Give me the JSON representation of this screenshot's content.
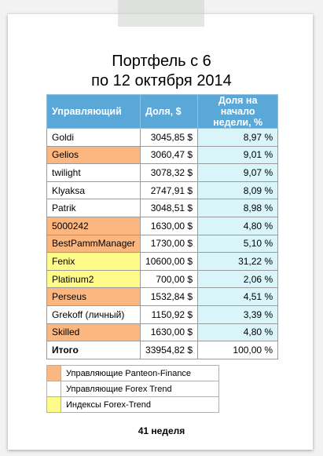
{
  "title_line1": "Портфель с 6",
  "title_line2": "по 12 октября 2014",
  "headers": {
    "manager": "Управляющий",
    "share": "Доля, $",
    "share_pct": "Доля на начало недели, %"
  },
  "rows": [
    {
      "name": "Goldi",
      "share": "3045,85 $",
      "pct": "8,97 %",
      "group": "trend"
    },
    {
      "name": "Gelios",
      "share": "3060,47 $",
      "pct": "9,01 %",
      "group": "panteon"
    },
    {
      "name": "twilight",
      "share": "3078,32 $",
      "pct": "9,07 %",
      "group": "trend"
    },
    {
      "name": "Klyaksa",
      "share": "2747,91 $",
      "pct": "8,09 %",
      "group": "trend"
    },
    {
      "name": "Patrik",
      "share": "3048,51 $",
      "pct": "8,98 %",
      "group": "trend"
    },
    {
      "name": "5000242",
      "share": "1630,00 $",
      "pct": "4,80 %",
      "group": "panteon"
    },
    {
      "name": "BestPammManager",
      "share": "1730,00 $",
      "pct": "5,10 %",
      "group": "panteon"
    },
    {
      "name": "Fenix",
      "share": "10600,00 $",
      "pct": "31,22 %",
      "group": "index"
    },
    {
      "name": "Platinum2",
      "share": "700,00 $",
      "pct": "2,06 %",
      "group": "index"
    },
    {
      "name": "Perseus",
      "share": "1532,84 $",
      "pct": "4,51 %",
      "group": "panteon"
    },
    {
      "name": "Grekoff (личный)",
      "share": "1150,92 $",
      "pct": "3,39 %",
      "group": "trend"
    },
    {
      "name": "Skilled",
      "share": "1630,00 $",
      "pct": "4,80 %",
      "group": "panteon"
    }
  ],
  "total": {
    "label": "Итого",
    "share": "33954,82 $",
    "pct": "100,00 %"
  },
  "legend": [
    {
      "label": "Управляющие Panteon-Finance",
      "color": "#fbb77f"
    },
    {
      "label": "Управляющие Forex Trend",
      "color": "#ffffff"
    },
    {
      "label": "Индексы Forex-Trend",
      "color": "#fffb8a"
    }
  ],
  "colors": {
    "panteon": "#fbb77f",
    "trend": "#ffffff",
    "index": "#fffb8a",
    "header": "#5aa8d8",
    "pct_cell": "#d9f5f9"
  },
  "footer": "41 неделя"
}
